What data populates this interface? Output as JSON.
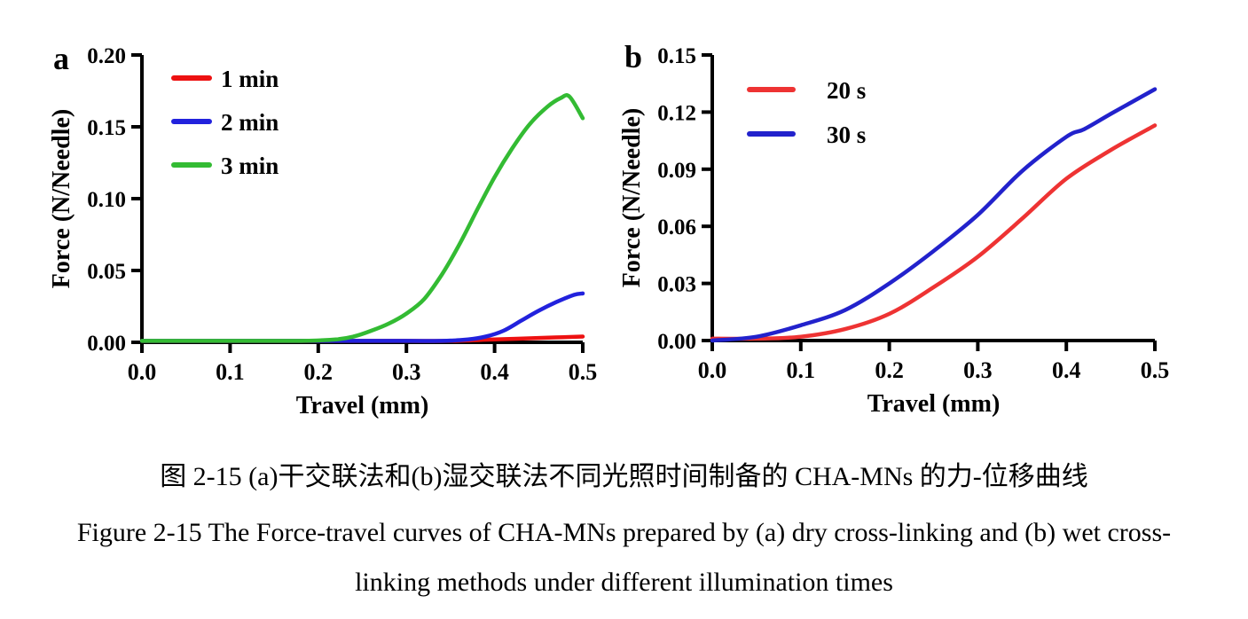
{
  "figure": {
    "caption_cn": "图 2-15 (a)干交联法和(b)湿交联法不同光照时间制备的 CHA-MNs 的力-位移曲线",
    "caption_en_line1": "Figure 2-15 The Force-travel curves of CHA-MNs prepared by (a) dry cross-linking and (b) wet cross-",
    "caption_en_line2": "linking methods under different illumination times"
  },
  "colors": {
    "axis": "#000000",
    "text": "#000000"
  },
  "chart_data": [
    {
      "type": "line",
      "panel_label": "a",
      "xlabel": "Travel (mm)",
      "ylabel": "Force (N/Needle)",
      "xlim": [
        0,
        0.5
      ],
      "ylim": [
        0,
        0.2
      ],
      "x_ticks": [
        "0.0",
        "0.1",
        "0.2",
        "0.3",
        "0.4",
        "0.5"
      ],
      "y_ticks": [
        "0.00",
        "0.05",
        "0.10",
        "0.15",
        "0.20"
      ],
      "grid": false,
      "legend_position": "top-left-inside",
      "series": [
        {
          "name": "1 min",
          "color": "#ed1111",
          "x": [
            0,
            0.05,
            0.1,
            0.15,
            0.2,
            0.25,
            0.3,
            0.35,
            0.4,
            0.45,
            0.5
          ],
          "y": [
            0.001,
            0.001,
            0.001,
            0.001,
            0.001,
            0.001,
            0.001,
            0.001,
            0.002,
            0.003,
            0.004
          ]
        },
        {
          "name": "2 min",
          "color": "#2222dd",
          "x": [
            0,
            0.1,
            0.2,
            0.3,
            0.34,
            0.37,
            0.39,
            0.41,
            0.43,
            0.45,
            0.47,
            0.49,
            0.5
          ],
          "y": [
            0.001,
            0.001,
            0.001,
            0.001,
            0.001,
            0.002,
            0.004,
            0.008,
            0.015,
            0.022,
            0.028,
            0.033,
            0.034
          ]
        },
        {
          "name": "3 min",
          "color": "#33bb33",
          "x": [
            0,
            0.1,
            0.18,
            0.22,
            0.24,
            0.26,
            0.28,
            0.3,
            0.32,
            0.34,
            0.36,
            0.38,
            0.4,
            0.42,
            0.44,
            0.46,
            0.475,
            0.485,
            0.5
          ],
          "y": [
            0.001,
            0.001,
            0.001,
            0.002,
            0.004,
            0.008,
            0.013,
            0.02,
            0.03,
            0.047,
            0.068,
            0.092,
            0.115,
            0.135,
            0.152,
            0.164,
            0.17,
            0.171,
            0.156
          ]
        }
      ]
    },
    {
      "type": "line",
      "panel_label": "b",
      "xlabel": "Travel (mm)",
      "ylabel": "Force (N/Needle)",
      "xlim": [
        0,
        0.5
      ],
      "ylim": [
        0,
        0.15
      ],
      "x_ticks": [
        "0.0",
        "0.1",
        "0.2",
        "0.3",
        "0.4",
        "0.5"
      ],
      "y_ticks": [
        "0.00",
        "0.03",
        "0.06",
        "0.09",
        "0.12",
        "0.15"
      ],
      "grid": false,
      "legend_position": "top-left-inside",
      "series": [
        {
          "name": "20 s",
          "color": "#ee3333",
          "x": [
            0,
            0.05,
            0.1,
            0.15,
            0.2,
            0.25,
            0.3,
            0.35,
            0.4,
            0.45,
            0.5
          ],
          "y": [
            0.001,
            0.001,
            0.002,
            0.006,
            0.014,
            0.028,
            0.044,
            0.064,
            0.085,
            0.1,
            0.113
          ]
        },
        {
          "name": "30 s",
          "color": "#2222cc",
          "x": [
            0,
            0.05,
            0.1,
            0.15,
            0.2,
            0.25,
            0.3,
            0.35,
            0.4,
            0.42,
            0.45,
            0.5
          ],
          "y": [
            0.0,
            0.002,
            0.008,
            0.016,
            0.03,
            0.047,
            0.066,
            0.089,
            0.107,
            0.111,
            0.119,
            0.132
          ]
        }
      ]
    }
  ]
}
